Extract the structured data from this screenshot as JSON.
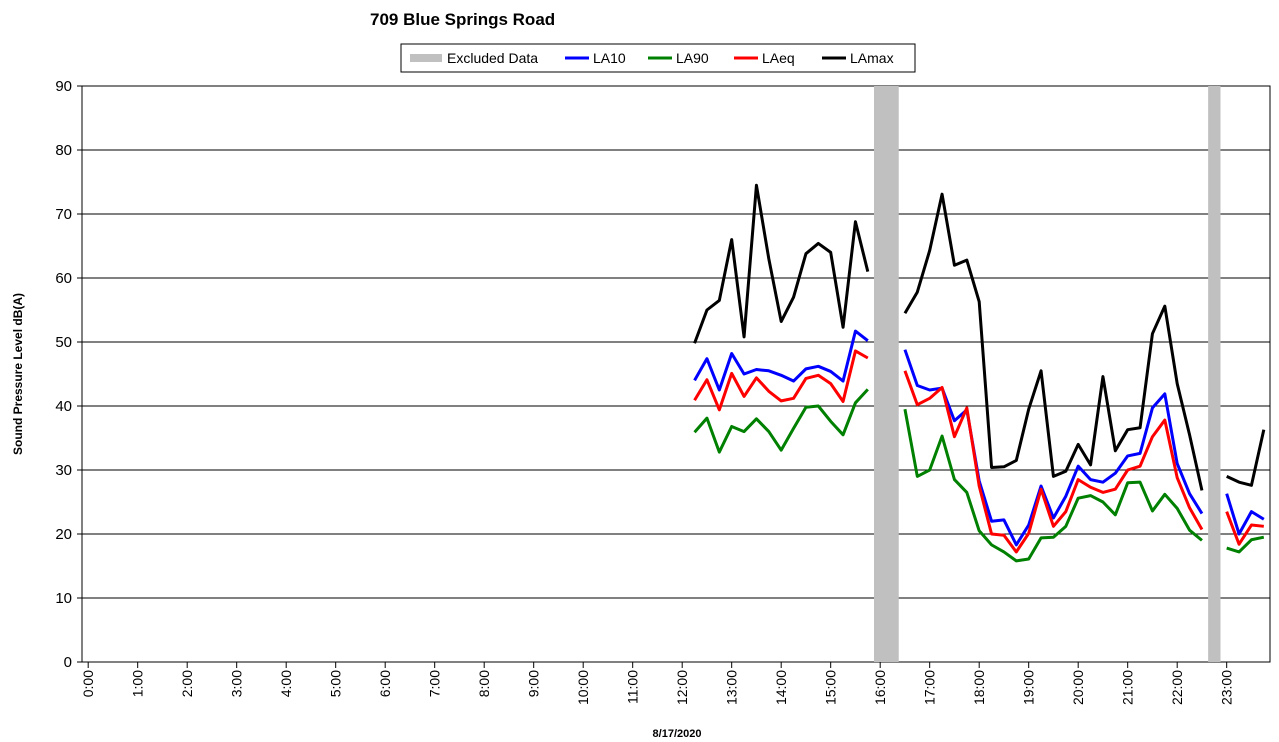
{
  "chart_data": {
    "type": "line",
    "title": "709 Blue Springs Road",
    "x_label": "8/17/2020",
    "y_label": "Sound Pressure Level dB(A)",
    "x": [
      12.25,
      12.5,
      12.75,
      13,
      13.25,
      13.5,
      13.75,
      14,
      14.25,
      14.5,
      14.75,
      15,
      15.25,
      15.5,
      15.75,
      16,
      16.25,
      16.5,
      16.75,
      17,
      17.25,
      17.5,
      17.75,
      18,
      18.25,
      18.5,
      18.75,
      19,
      19.25,
      19.5,
      19.75,
      20,
      20.25,
      20.5,
      20.75,
      21,
      21.25,
      21.5,
      21.75,
      22,
      22.25,
      22.5,
      22.75,
      23,
      23.25,
      23.5,
      23.75
    ],
    "series": [
      {
        "name": "Excluded Data",
        "color": "#c0c0c0",
        "ranges": [
          [
            15.875,
            16.375
          ],
          [
            22.625,
            22.875
          ]
        ]
      },
      {
        "name": "LA10",
        "color": "#0000ff",
        "values": [
          44,
          47.4,
          42.5,
          48.2,
          45,
          45.7,
          45.5,
          44.8,
          43.9,
          45.8,
          46.2,
          45.4,
          43.9,
          51.7,
          50.2,
          null,
          null,
          48.8,
          43.2,
          42.5,
          42.8,
          37.7,
          39.4,
          28.3,
          22,
          22.2,
          18.3,
          21.4,
          27.5,
          22.5,
          25.9,
          30.6,
          28.5,
          28.1,
          29.5,
          32.2,
          32.6,
          39.7,
          41.9,
          31,
          26.3,
          23.2,
          null,
          26.3,
          20,
          23.5,
          22.3
        ]
      },
      {
        "name": "LA90",
        "color": "#008000",
        "values": [
          35.9,
          38.1,
          32.8,
          36.8,
          36,
          38,
          36,
          33.1,
          36.5,
          39.8,
          40,
          37.6,
          35.5,
          40.5,
          42.6,
          null,
          null,
          39.5,
          29,
          30,
          35.3,
          28.5,
          26.5,
          20.5,
          18.3,
          17.2,
          15.8,
          16.1,
          19.4,
          19.5,
          21.2,
          25.6,
          26,
          25,
          23,
          28,
          28.1,
          23.6,
          26.2,
          24,
          20.6,
          19,
          null,
          17.8,
          17.2,
          19.1,
          19.5
        ]
      },
      {
        "name": "LAeq",
        "color": "#ff0000",
        "values": [
          40.9,
          44.1,
          39.4,
          45.1,
          41.5,
          44.4,
          42.3,
          40.8,
          41.2,
          44.3,
          44.8,
          43.5,
          40.7,
          48.6,
          47.5,
          null,
          null,
          45.5,
          40.2,
          41.2,
          42.9,
          35.2,
          39.7,
          27.5,
          20,
          19.8,
          17.2,
          20.1,
          27,
          21.2,
          23.5,
          28.5,
          27.3,
          26.5,
          27,
          30,
          30.6,
          35.2,
          37.8,
          28.8,
          24.1,
          20.7,
          null,
          23.5,
          18.4,
          21.4,
          21.2
        ]
      },
      {
        "name": "LAmax",
        "color": "#000000",
        "values": [
          49.8,
          55,
          56.5,
          66,
          50.8,
          74.5,
          63,
          53.2,
          57,
          63.8,
          65.4,
          64,
          52.3,
          68.8,
          61,
          null,
          null,
          54.5,
          57.8,
          64.3,
          73.1,
          62,
          62.8,
          56.3,
          30.4,
          30.5,
          31.5,
          39.5,
          45.5,
          29,
          29.8,
          34,
          30.8,
          44.6,
          33,
          36.3,
          36.6,
          51.3,
          55.6,
          43.5,
          35.5,
          26.8,
          null,
          29,
          28.1,
          27.6,
          36.3
        ]
      }
    ],
    "xlim": [
      -0.125,
      23.875
    ],
    "xticks": [
      {
        "value": 0,
        "label": "0:00"
      },
      {
        "value": 1,
        "label": "1:00"
      },
      {
        "value": 2,
        "label": "2:00"
      },
      {
        "value": 3,
        "label": "3:00"
      },
      {
        "value": 4,
        "label": "4:00"
      },
      {
        "value": 5,
        "label": "5:00"
      },
      {
        "value": 6,
        "label": "6:00"
      },
      {
        "value": 7,
        "label": "7:00"
      },
      {
        "value": 8,
        "label": "8:00"
      },
      {
        "value": 9,
        "label": "9:00"
      },
      {
        "value": 10,
        "label": "10:00"
      },
      {
        "value": 11,
        "label": "11:00"
      },
      {
        "value": 12,
        "label": "12:00"
      },
      {
        "value": 13,
        "label": "13:00"
      },
      {
        "value": 14,
        "label": "14:00"
      },
      {
        "value": 15,
        "label": "15:00"
      },
      {
        "value": 16,
        "label": "16:00"
      },
      {
        "value": 17,
        "label": "17:00"
      },
      {
        "value": 18,
        "label": "18:00"
      },
      {
        "value": 19,
        "label": "19:00"
      },
      {
        "value": 20,
        "label": "20:00"
      },
      {
        "value": 21,
        "label": "21:00"
      },
      {
        "value": 22,
        "label": "22:00"
      },
      {
        "value": 23,
        "label": "23:00"
      }
    ],
    "ylim": [
      0,
      90
    ],
    "yticks": [
      0,
      10,
      20,
      30,
      40,
      50,
      60,
      70,
      80,
      90
    ],
    "grid": true
  }
}
